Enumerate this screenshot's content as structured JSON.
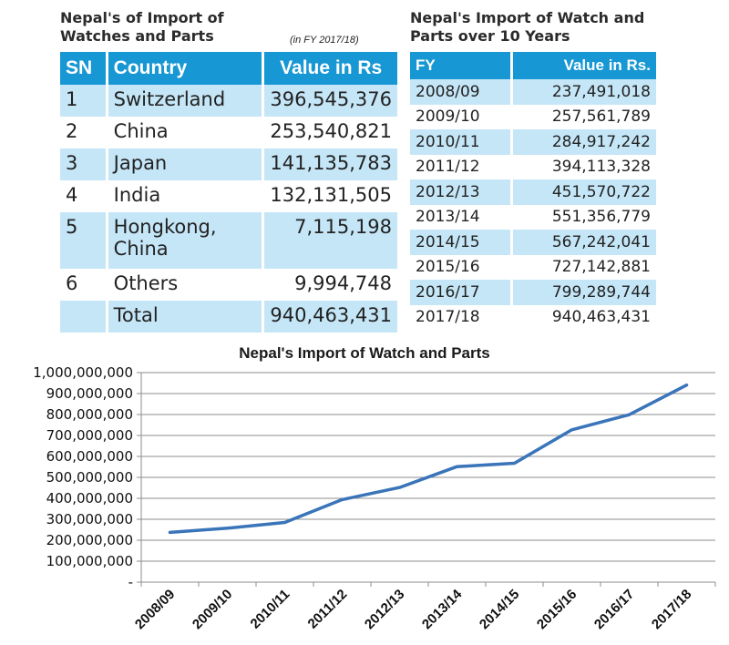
{
  "import_by_country": {
    "title": "Nepal's of Import of Watches and Parts",
    "subtitle": "(in FY 2017/18)",
    "headers": [
      "SN",
      "Country",
      "Value in Rs"
    ],
    "rows": [
      {
        "sn": "1",
        "country": "Switzerland",
        "value": "396,545,376"
      },
      {
        "sn": "2",
        "country": "China",
        "value": "253,540,821"
      },
      {
        "sn": "3",
        "country": "Japan",
        "value": "141,135,783"
      },
      {
        "sn": "4",
        "country": "India",
        "value": "132,131,505"
      },
      {
        "sn": "5",
        "country": "Hongkong, China",
        "value": "7,115,198"
      },
      {
        "sn": "6",
        "country": "Others",
        "value": "9,994,748"
      },
      {
        "sn": "",
        "country": "Total",
        "value": "940,463,431"
      }
    ]
  },
  "import_over_years": {
    "title": "Nepal's Import of Watch and Parts over 10 Years",
    "headers": [
      "FY",
      "Value in Rs."
    ],
    "rows": [
      {
        "fy": "2008/09",
        "value": "237,491,018"
      },
      {
        "fy": "2009/10",
        "value": "257,561,789"
      },
      {
        "fy": "2010/11",
        "value": "284,917,242"
      },
      {
        "fy": "2011/12",
        "value": "394,113,328"
      },
      {
        "fy": "2012/13",
        "value": "451,570,722"
      },
      {
        "fy": "2013/14",
        "value": "551,356,779"
      },
      {
        "fy": "2014/15",
        "value": "567,242,041"
      },
      {
        "fy": "2015/16",
        "value": "727,142,881"
      },
      {
        "fy": "2016/17",
        "value": "799,289,744"
      },
      {
        "fy": "2017/18",
        "value": "940,463,431"
      }
    ]
  },
  "chart_data": {
    "type": "line",
    "title": "Nepal's Import of Watch and Parts",
    "xlabel": "",
    "ylabel": "",
    "categories": [
      "2008/09",
      "2009/10",
      "2010/11",
      "2011/12",
      "2012/13",
      "2013/14",
      "2014/15",
      "2015/16",
      "2016/17",
      "2017/18"
    ],
    "series": [
      {
        "values": [
          237491018,
          257561789,
          284917242,
          394113328,
          451570722,
          551356779,
          567242041,
          727142881,
          799289744,
          940463431
        ]
      }
    ],
    "ylim": [
      0,
      1000000000
    ],
    "yticks": [
      0,
      100000000,
      200000000,
      300000000,
      400000000,
      500000000,
      600000000,
      700000000,
      800000000,
      900000000,
      1000000000
    ],
    "ytick_labels": [
      "-",
      "100,000,000",
      "200,000,000",
      "300,000,000",
      "400,000,000",
      "500,000,000",
      "600,000,000",
      "700,000,000",
      "800,000,000",
      "900,000,000",
      "1,000,000,000"
    ],
    "grid": true,
    "line_color": "#3a74b9",
    "grid_color": "#8c8c8c"
  },
  "colors": {
    "header": "#1797d4",
    "row_alt": "#c5e6f7"
  }
}
